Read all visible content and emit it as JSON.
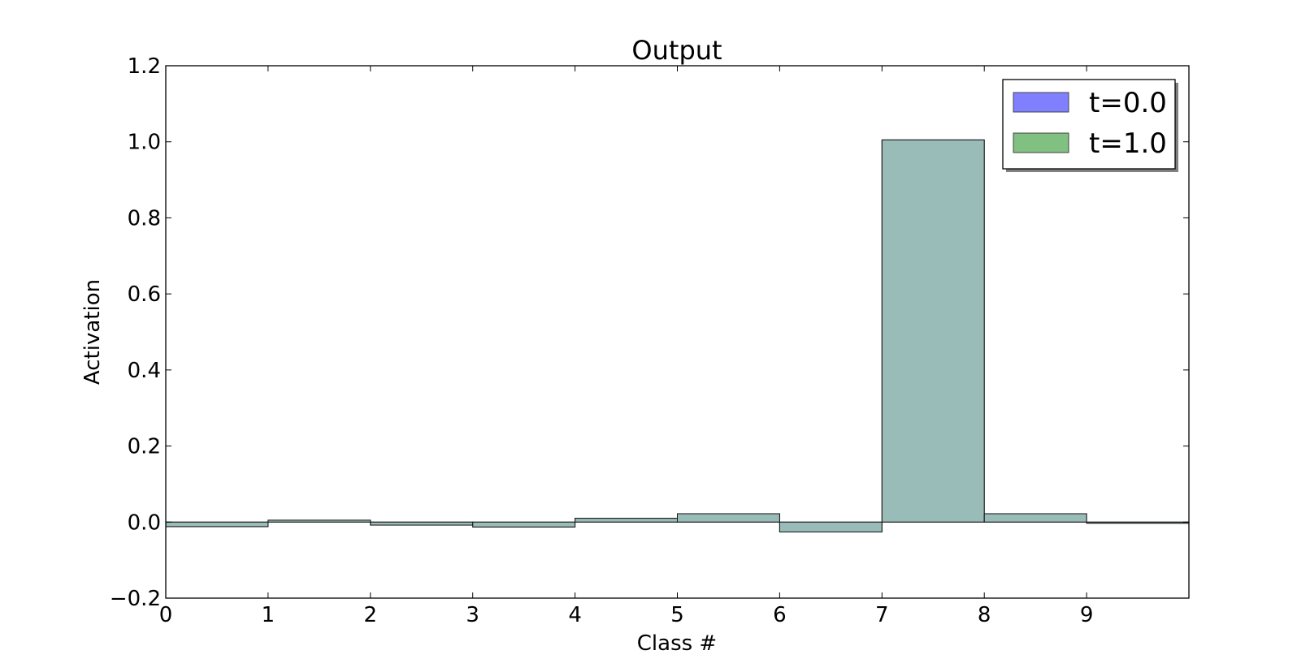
{
  "chart_data": {
    "type": "bar",
    "title": "Output",
    "xlabel": "Class #",
    "ylabel": "Activation",
    "categories": [
      "0",
      "1",
      "2",
      "3",
      "4",
      "5",
      "6",
      "7",
      "8",
      "9"
    ],
    "x_ticks": [
      "0",
      "1",
      "2",
      "3",
      "4",
      "5",
      "6",
      "7",
      "8",
      "9"
    ],
    "y_ticks": [
      "−0.2",
      "0.0",
      "0.2",
      "0.4",
      "0.6",
      "0.8",
      "1.0",
      "1.2"
    ],
    "xlim": [
      0,
      10
    ],
    "ylim": [
      -0.2,
      1.2
    ],
    "grid": false,
    "legend_position": "top-right",
    "series": [
      {
        "name": "t=0.0",
        "color": "#8080ff",
        "values": [
          -0.012,
          0.005,
          -0.008,
          -0.013,
          0.01,
          0.022,
          -0.026,
          1.005,
          0.022,
          -0.003
        ]
      },
      {
        "name": "t=1.0",
        "color": "#80c080",
        "values": [
          -0.012,
          0.005,
          -0.008,
          -0.013,
          0.01,
          0.022,
          -0.026,
          1.005,
          0.022,
          -0.003
        ]
      }
    ]
  }
}
